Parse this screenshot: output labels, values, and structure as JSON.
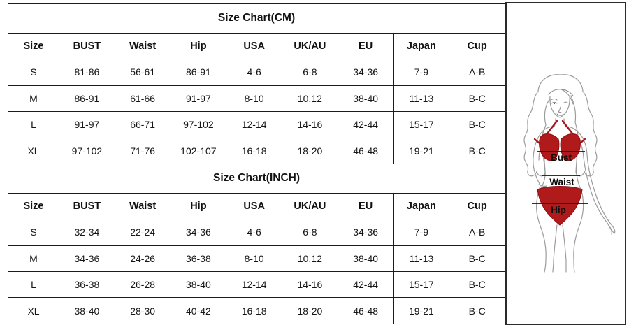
{
  "size_tables": {
    "sections": [
      {
        "title": "Size Chart(CM)",
        "headers": [
          "Size",
          "BUST",
          "Waist",
          "Hip",
          "USA",
          "UK/AU",
          "EU",
          "Japan",
          "Cup"
        ],
        "rows": [
          [
            "S",
            "81-86",
            "56-61",
            "86-91",
            "4-6",
            "6-8",
            "34-36",
            "7-9",
            "A-B"
          ],
          [
            "M",
            "86-91",
            "61-66",
            "91-97",
            "8-10",
            "10.12",
            "38-40",
            "11-13",
            "B-C"
          ],
          [
            "L",
            "91-97",
            "66-71",
            "97-102",
            "12-14",
            "14-16",
            "42-44",
            "15-17",
            "B-C"
          ],
          [
            "XL",
            "97-102",
            "71-76",
            "102-107",
            "16-18",
            "18-20",
            "46-48",
            "19-21",
            "B-C"
          ]
        ]
      },
      {
        "title": "Size Chart(INCH)",
        "headers": [
          "Size",
          "BUST",
          "Waist",
          "Hip",
          "USA",
          "UK/AU",
          "EU",
          "Japan",
          "Cup"
        ],
        "rows": [
          [
            "S",
            "32-34",
            "22-24",
            "34-36",
            "4-6",
            "6-8",
            "34-36",
            "7-9",
            "A-B"
          ],
          [
            "M",
            "34-36",
            "24-26",
            "36-38",
            "8-10",
            "10.12",
            "38-40",
            "11-13",
            "B-C"
          ],
          [
            "L",
            "36-38",
            "26-28",
            "38-40",
            "12-14",
            "14-16",
            "42-44",
            "15-17",
            "B-C"
          ],
          [
            "XL",
            "38-40",
            "28-30",
            "40-42",
            "16-18",
            "18-20",
            "46-48",
            "19-21",
            "B-C"
          ]
        ]
      }
    ]
  },
  "figure": {
    "labels": {
      "bust": "Bust",
      "waist": "Waist",
      "hip": "Hip"
    },
    "colors": {
      "bikini_red": "#b01a1a",
      "body_outline": "#9c9c9c",
      "measure_line": "#141414"
    }
  }
}
